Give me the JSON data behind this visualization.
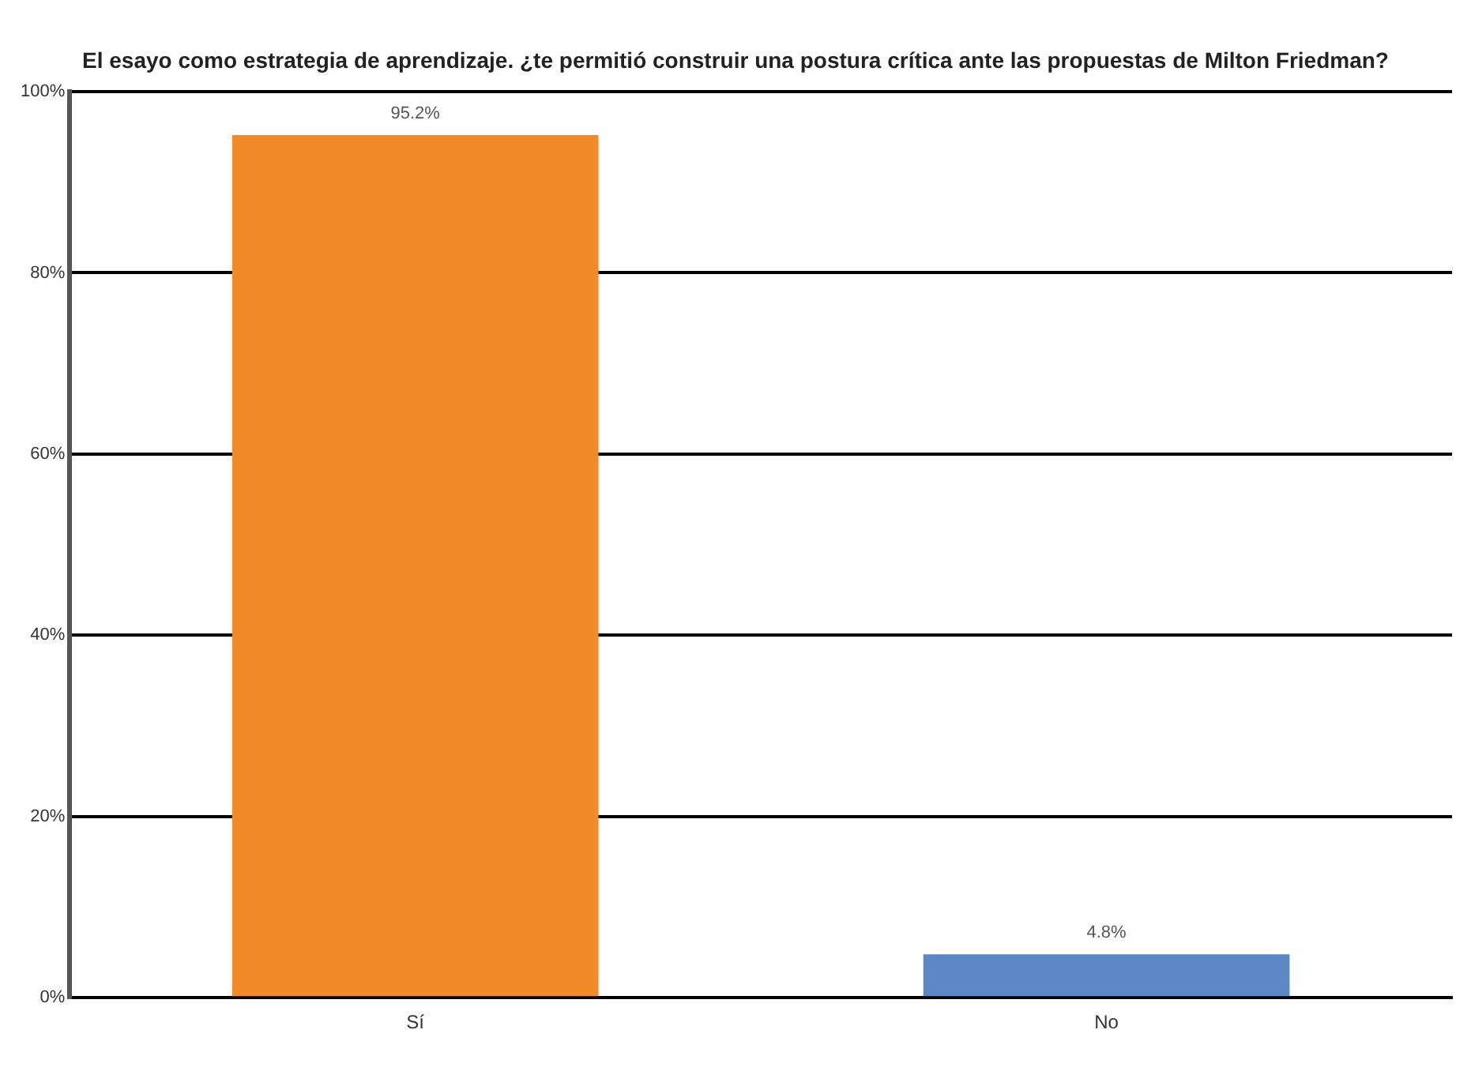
{
  "chart_data": {
    "type": "bar",
    "title": "El esayo como estrategia de aprendizaje. ¿te permitió construir una postura crítica ante las propuestas de Milton Friedman?",
    "categories": [
      "Sí",
      "No"
    ],
    "values": [
      95.2,
      4.8
    ],
    "colors": [
      "#f28a27",
      "#5b87c5"
    ],
    "value_labels": [
      "95.2%",
      "4.8%"
    ],
    "ylim": [
      0,
      100
    ],
    "yticks": [
      {
        "value": 0,
        "label": "0%"
      },
      {
        "value": 20,
        "label": "20%"
      },
      {
        "value": 40,
        "label": "40%"
      },
      {
        "value": 60,
        "label": "60%"
      },
      {
        "value": 80,
        "label": "80%"
      },
      {
        "value": 100,
        "label": "100%"
      }
    ],
    "grid": "y"
  }
}
